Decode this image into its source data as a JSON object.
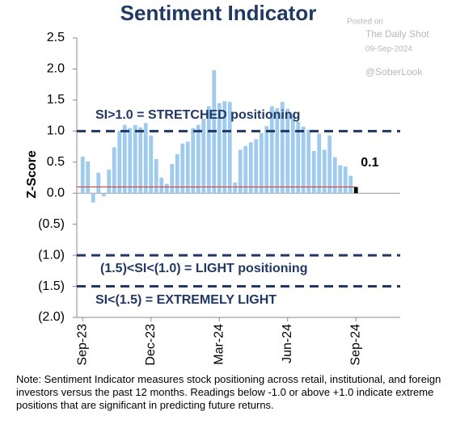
{
  "chart_data": {
    "type": "bar",
    "title": "Sentiment Indicator",
    "y_label": "Z-Score",
    "categories": [
      "Sep-23",
      null,
      null,
      null,
      null,
      null,
      null,
      null,
      null,
      null,
      null,
      null,
      null,
      "Dec-23",
      null,
      null,
      null,
      null,
      null,
      null,
      null,
      null,
      null,
      null,
      null,
      null,
      "Mar-24",
      null,
      null,
      null,
      null,
      null,
      null,
      null,
      null,
      null,
      null,
      null,
      null,
      "Jun-24",
      null,
      null,
      null,
      null,
      null,
      null,
      null,
      null,
      null,
      null,
      null,
      null,
      "Sep-24"
    ],
    "values": [
      0.59,
      0.51,
      -0.15,
      0.33,
      -0.05,
      0.38,
      0.74,
      1.0,
      1.1,
      1.05,
      1.1,
      1.06,
      1.13,
      0.93,
      0.55,
      0.25,
      0.15,
      0.47,
      0.63,
      0.8,
      0.83,
      1.05,
      1.1,
      1.2,
      1.4,
      1.98,
      1.45,
      1.48,
      1.47,
      0.17,
      0.7,
      0.76,
      0.82,
      0.87,
      0.97,
      1.08,
      1.4,
      1.37,
      1.47,
      1.36,
      1.27,
      1.15,
      1.07,
      1.02,
      0.68,
      0.96,
      0.7,
      0.93,
      0.58,
      0.45,
      0.43,
      0.28,
      0.1
    ],
    "value_labels": [
      null,
      null,
      null,
      null,
      null,
      null,
      null,
      null,
      null,
      null,
      null,
      null,
      null,
      null,
      null,
      null,
      null,
      null,
      null,
      null,
      null,
      null,
      null,
      null,
      null,
      null,
      null,
      null,
      null,
      null,
      null,
      null,
      null,
      null,
      null,
      null,
      null,
      null,
      null,
      null,
      null,
      null,
      null,
      null,
      null,
      null,
      null,
      null,
      null,
      null,
      null,
      null,
      "0.1"
    ],
    "color": "#9fcbee",
    "latest_color": "#000000",
    "latest_line_color": "#e03030",
    "threshold_color": "#1f3864",
    "ylim": [
      -2,
      2.5
    ],
    "yticks": [
      {
        "value": -2,
        "label": "(2.0)"
      },
      {
        "value": -1.5,
        "label": "(1.5)"
      },
      {
        "value": -1,
        "label": "(1.0)"
      },
      {
        "value": -0.5,
        "label": "(0.5)"
      },
      {
        "value": 0,
        "label": "0.0"
      },
      0.5,
      {
        "value": 1,
        "label": "1.0"
      },
      1.5,
      {
        "value": 2,
        "label": "2.0"
      },
      2.5
    ],
    "thresholds": [
      1,
      -1,
      -1.5
    ],
    "annotations": [
      "SI>1.0 = STRETCHED positioning",
      "(1.5)<SI<(1.0) = LIGHT positioning",
      "SI<(1.5) = EXTREMELY LIGHT"
    ],
    "watermark": [
      "Posted on",
      "The Daily Shot",
      "09-Sep-2024",
      "@SoberLook"
    ],
    "note": "Note: Sentiment Indicator measures stock positioning across retail, institutional, and foreign investors versus the past 12 months. Readings below -1.0 or above +1.0 indicate extreme positions that are significant in predicting future returns."
  }
}
